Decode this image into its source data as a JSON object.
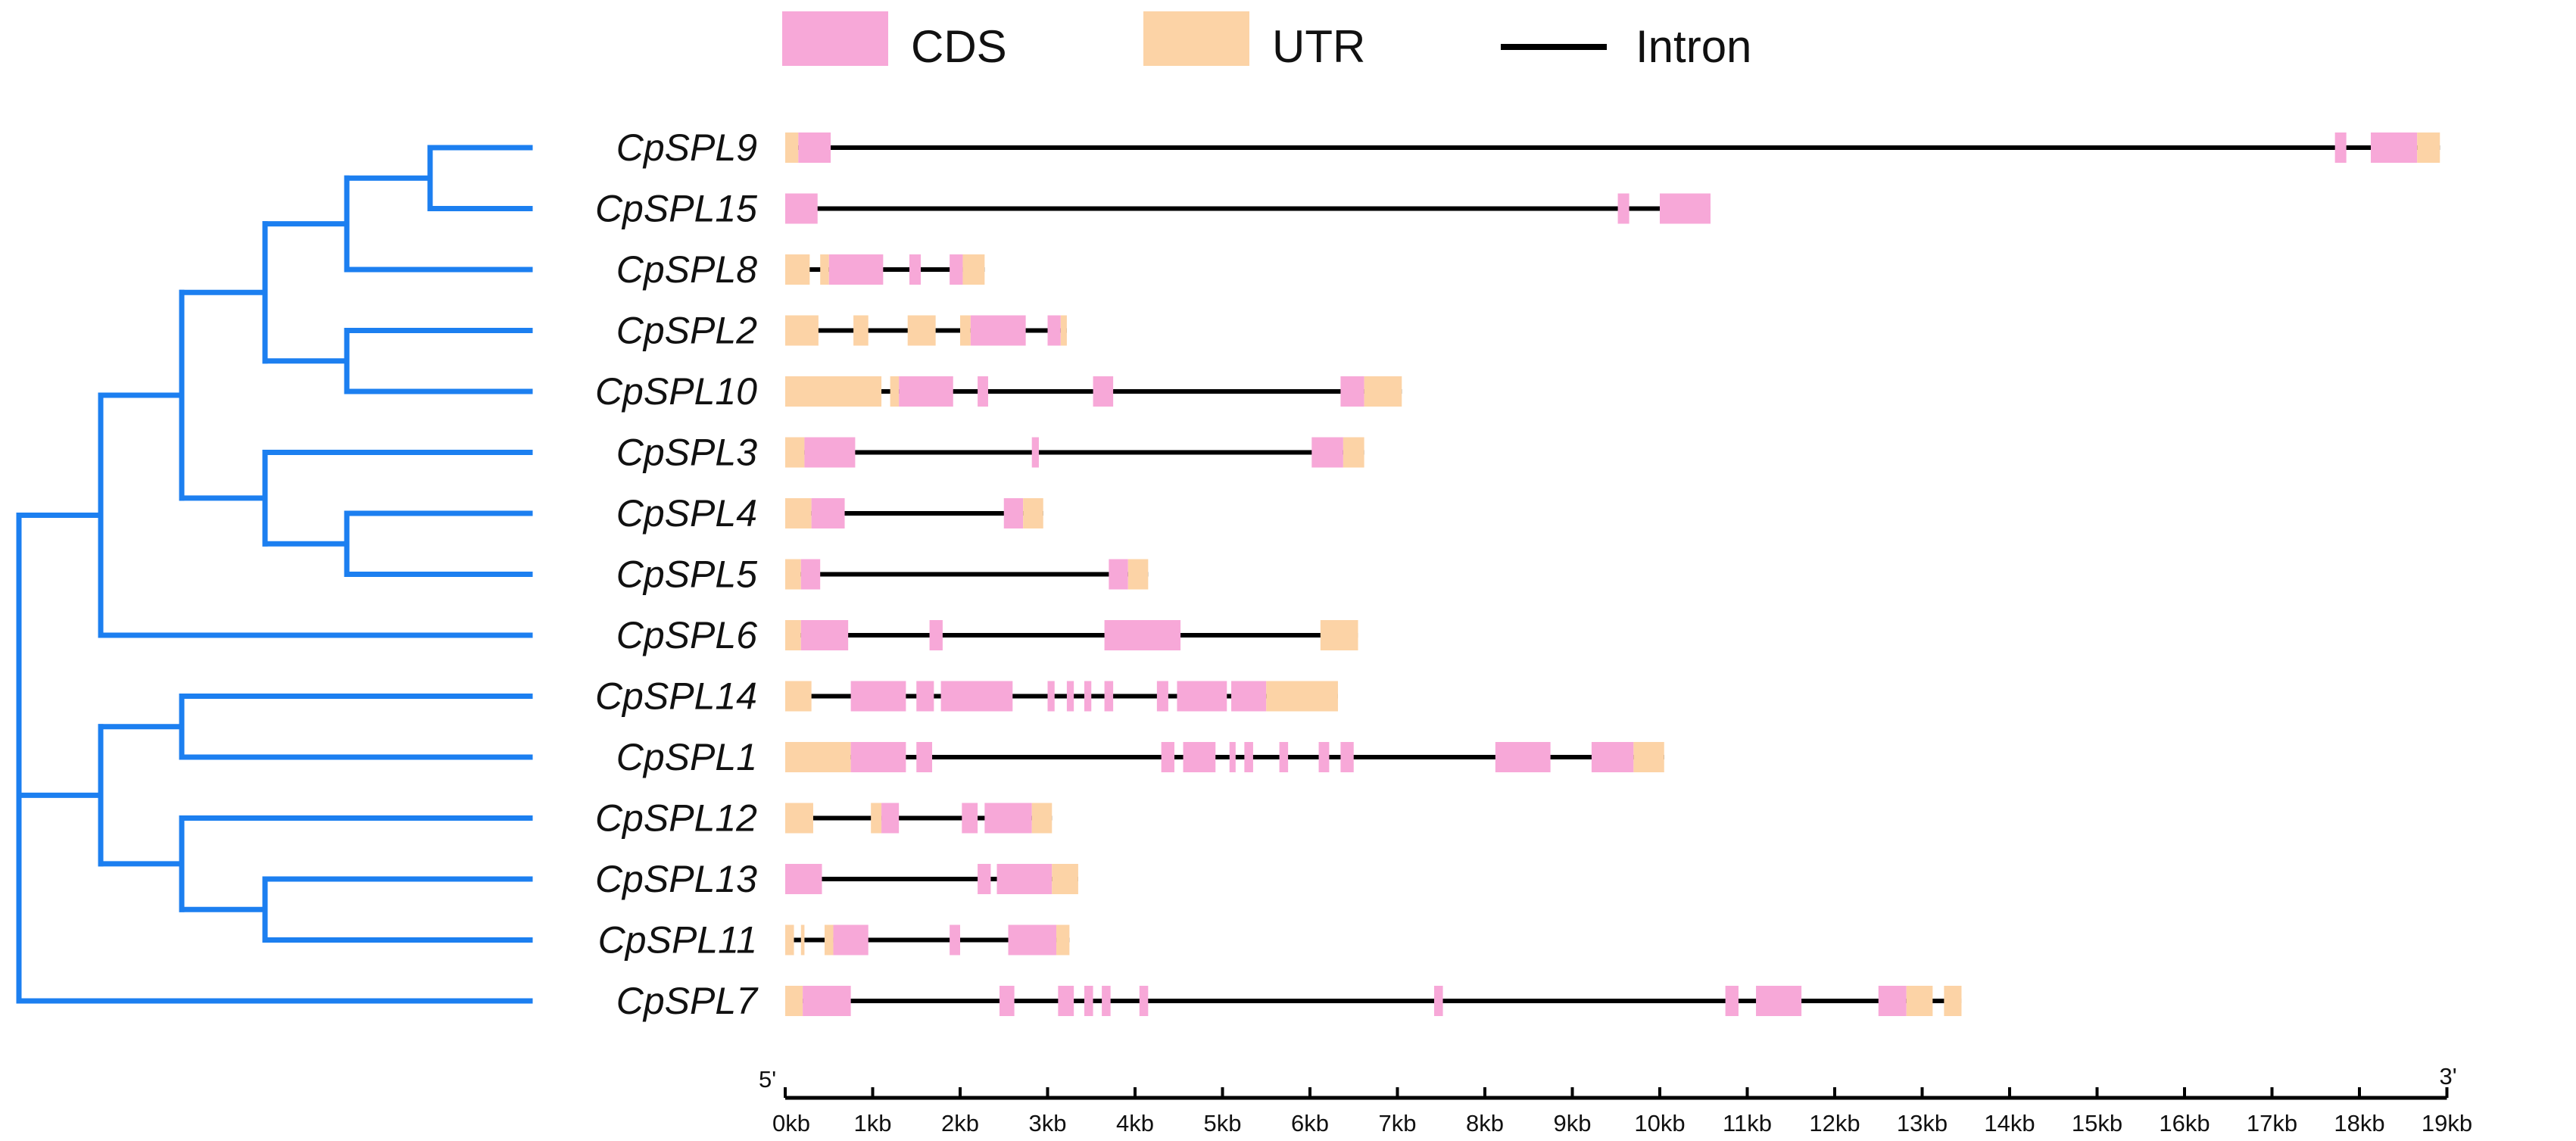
{
  "legend": {
    "items": [
      {
        "label": "CDS",
        "kind": "cds"
      },
      {
        "label": "UTR",
        "kind": "utr"
      },
      {
        "label": "Intron",
        "kind": "intron"
      }
    ]
  },
  "colors": {
    "cds": "#F7A8D8",
    "utr": "#FCD3A6",
    "intron": "#000000",
    "tree": "#1C7FF0"
  },
  "axis": {
    "start_label": "5'",
    "end_label": "3'",
    "ticks": [
      "0kb",
      "1kb",
      "2kb",
      "3kb",
      "4kb",
      "5kb",
      "6kb",
      "7kb",
      "8kb",
      "9kb",
      "10kb",
      "11kb",
      "12kb",
      "13kb",
      "14kb",
      "15kb",
      "16kb",
      "17kb",
      "18kb",
      "19kb"
    ],
    "min_kb": 0,
    "max_kb": 19
  },
  "tree": {
    "order": [
      "CpSPL9",
      "CpSPL15",
      "CpSPL8",
      "CpSPL2",
      "CpSPL10",
      "CpSPL3",
      "CpSPL4",
      "CpSPL5",
      "CpSPL6",
      "CpSPL14",
      "CpSPL1",
      "CpSPL12",
      "CpSPL13",
      "CpSPL11",
      "CpSPL7"
    ],
    "clades": [
      {
        "id": "a",
        "children": [
          "CpSPL9",
          "CpSPL15"
        ],
        "depth": 5
      },
      {
        "id": "b",
        "children": [
          "a",
          "CpSPL8"
        ],
        "depth": 4
      },
      {
        "id": "c",
        "children": [
          "CpSPL2",
          "CpSPL10"
        ],
        "depth": 4
      },
      {
        "id": "d",
        "children": [
          "b",
          "c"
        ],
        "depth": 3
      },
      {
        "id": "e",
        "children": [
          "CpSPL4",
          "CpSPL5"
        ],
        "depth": 4
      },
      {
        "id": "f",
        "children": [
          "CpSPL3",
          "e"
        ],
        "depth": 3
      },
      {
        "id": "g",
        "children": [
          "d",
          "f"
        ],
        "depth": 2
      },
      {
        "id": "h",
        "children": [
          "g",
          "CpSPL6"
        ],
        "depth": 1
      },
      {
        "id": "i",
        "children": [
          "CpSPL14",
          "CpSPL1"
        ],
        "depth": 2
      },
      {
        "id": "j",
        "children": [
          "CpSPL13",
          "CpSPL11"
        ],
        "depth": 3
      },
      {
        "id": "k",
        "children": [
          "CpSPL12",
          "j"
        ],
        "depth": 2
      },
      {
        "id": "l",
        "children": [
          "i",
          "k"
        ],
        "depth": 1
      },
      {
        "id": "root",
        "children": [
          "h",
          "l",
          "CpSPL7"
        ],
        "depth": 0
      }
    ]
  },
  "genes": [
    {
      "name": "CpSPL9",
      "length_kb": 18.92,
      "features": [
        {
          "t": "utr",
          "s": 0,
          "e": 0.15
        },
        {
          "t": "cds",
          "s": 0.15,
          "e": 0.52
        },
        {
          "t": "cds",
          "s": 17.72,
          "e": 17.85
        },
        {
          "t": "cds",
          "s": 18.13,
          "e": 18.66
        },
        {
          "t": "utr",
          "s": 18.66,
          "e": 18.92
        }
      ]
    },
    {
      "name": "CpSPL15",
      "length_kb": 10.58,
      "features": [
        {
          "t": "cds",
          "s": 0,
          "e": 0.37
        },
        {
          "t": "cds",
          "s": 9.52,
          "e": 9.65
        },
        {
          "t": "cds",
          "s": 10.0,
          "e": 10.58
        }
      ]
    },
    {
      "name": "CpSPL8",
      "length_kb": 2.28,
      "features": [
        {
          "t": "utr",
          "s": 0,
          "e": 0.28
        },
        {
          "t": "utr",
          "s": 0.4,
          "e": 0.5
        },
        {
          "t": "cds",
          "s": 0.5,
          "e": 1.12
        },
        {
          "t": "cds",
          "s": 1.42,
          "e": 1.55
        },
        {
          "t": "cds",
          "s": 1.88,
          "e": 2.03
        },
        {
          "t": "utr",
          "s": 2.03,
          "e": 2.28
        }
      ]
    },
    {
      "name": "CpSPL2",
      "length_kb": 3.22,
      "features": [
        {
          "t": "utr",
          "s": 0,
          "e": 0.38
        },
        {
          "t": "utr",
          "s": 0.78,
          "e": 0.95
        },
        {
          "t": "utr",
          "s": 1.4,
          "e": 1.72
        },
        {
          "t": "utr",
          "s": 2.0,
          "e": 2.12
        },
        {
          "t": "cds",
          "s": 2.12,
          "e": 2.75
        },
        {
          "t": "cds",
          "s": 3.0,
          "e": 3.15
        },
        {
          "t": "utr",
          "s": 3.15,
          "e": 3.22
        }
      ]
    },
    {
      "name": "CpSPL10",
      "length_kb": 7.05,
      "features": [
        {
          "t": "utr",
          "s": 0,
          "e": 1.1
        },
        {
          "t": "utr",
          "s": 1.2,
          "e": 1.3
        },
        {
          "t": "cds",
          "s": 1.3,
          "e": 1.92
        },
        {
          "t": "cds",
          "s": 2.2,
          "e": 2.32
        },
        {
          "t": "cds",
          "s": 3.52,
          "e": 3.75
        },
        {
          "t": "cds",
          "s": 6.35,
          "e": 6.62
        },
        {
          "t": "utr",
          "s": 6.62,
          "e": 7.05
        }
      ]
    },
    {
      "name": "CpSPL3",
      "length_kb": 6.62,
      "features": [
        {
          "t": "utr",
          "s": 0,
          "e": 0.22
        },
        {
          "t": "cds",
          "s": 0.22,
          "e": 0.8
        },
        {
          "t": "cds",
          "s": 2.82,
          "e": 2.9
        },
        {
          "t": "cds",
          "s": 6.02,
          "e": 6.38
        },
        {
          "t": "utr",
          "s": 6.38,
          "e": 6.62
        }
      ]
    },
    {
      "name": "CpSPL4",
      "length_kb": 2.95,
      "features": [
        {
          "t": "utr",
          "s": 0,
          "e": 0.3
        },
        {
          "t": "cds",
          "s": 0.3,
          "e": 0.68
        },
        {
          "t": "cds",
          "s": 2.5,
          "e": 2.72
        },
        {
          "t": "utr",
          "s": 2.72,
          "e": 2.95
        }
      ]
    },
    {
      "name": "CpSPL5",
      "length_kb": 4.15,
      "features": [
        {
          "t": "utr",
          "s": 0,
          "e": 0.18
        },
        {
          "t": "cds",
          "s": 0.18,
          "e": 0.4
        },
        {
          "t": "cds",
          "s": 3.7,
          "e": 3.92
        },
        {
          "t": "utr",
          "s": 3.92,
          "e": 4.15
        }
      ]
    },
    {
      "name": "CpSPL6",
      "length_kb": 6.55,
      "features": [
        {
          "t": "utr",
          "s": 0,
          "e": 0.18
        },
        {
          "t": "cds",
          "s": 0.18,
          "e": 0.72
        },
        {
          "t": "cds",
          "s": 1.65,
          "e": 1.8
        },
        {
          "t": "cds",
          "s": 3.65,
          "e": 4.52
        },
        {
          "t": "utr",
          "s": 6.12,
          "e": 6.55
        }
      ]
    },
    {
      "name": "CpSPL14",
      "length_kb": 6.32,
      "features": [
        {
          "t": "utr",
          "s": 0,
          "e": 0.3
        },
        {
          "t": "cds",
          "s": 0.75,
          "e": 1.38
        },
        {
          "t": "cds",
          "s": 1.5,
          "e": 1.7
        },
        {
          "t": "cds",
          "s": 1.78,
          "e": 2.6
        },
        {
          "t": "cds",
          "s": 3.0,
          "e": 3.08
        },
        {
          "t": "cds",
          "s": 3.22,
          "e": 3.3
        },
        {
          "t": "cds",
          "s": 3.42,
          "e": 3.5
        },
        {
          "t": "cds",
          "s": 3.65,
          "e": 3.75
        },
        {
          "t": "cds",
          "s": 4.25,
          "e": 4.38
        },
        {
          "t": "cds",
          "s": 4.48,
          "e": 5.05
        },
        {
          "t": "cds",
          "s": 5.1,
          "e": 5.5
        },
        {
          "t": "utr",
          "s": 5.5,
          "e": 6.32
        }
      ]
    },
    {
      "name": "CpSPL1",
      "length_kb": 10.05,
      "features": [
        {
          "t": "utr",
          "s": 0,
          "e": 0.75
        },
        {
          "t": "cds",
          "s": 0.75,
          "e": 1.38
        },
        {
          "t": "cds",
          "s": 1.5,
          "e": 1.68
        },
        {
          "t": "cds",
          "s": 4.3,
          "e": 4.45
        },
        {
          "t": "cds",
          "s": 4.55,
          "e": 4.92
        },
        {
          "t": "cds",
          "s": 5.08,
          "e": 5.15
        },
        {
          "t": "cds",
          "s": 5.25,
          "e": 5.35
        },
        {
          "t": "cds",
          "s": 5.65,
          "e": 5.75
        },
        {
          "t": "cds",
          "s": 6.1,
          "e": 6.22
        },
        {
          "t": "cds",
          "s": 6.35,
          "e": 6.5
        },
        {
          "t": "cds",
          "s": 8.12,
          "e": 8.75
        },
        {
          "t": "cds",
          "s": 9.22,
          "e": 9.7
        },
        {
          "t": "utr",
          "s": 9.7,
          "e": 10.05
        }
      ]
    },
    {
      "name": "CpSPL12",
      "length_kb": 3.05,
      "features": [
        {
          "t": "utr",
          "s": 0,
          "e": 0.32
        },
        {
          "t": "utr",
          "s": 0.98,
          "e": 1.1
        },
        {
          "t": "cds",
          "s": 1.1,
          "e": 1.3
        },
        {
          "t": "cds",
          "s": 2.02,
          "e": 2.2
        },
        {
          "t": "cds",
          "s": 2.28,
          "e": 2.82
        },
        {
          "t": "utr",
          "s": 2.82,
          "e": 3.05
        }
      ]
    },
    {
      "name": "CpSPL13",
      "length_kb": 3.35,
      "features": [
        {
          "t": "cds",
          "s": 0,
          "e": 0.42
        },
        {
          "t": "cds",
          "s": 2.2,
          "e": 2.35
        },
        {
          "t": "cds",
          "s": 2.42,
          "e": 3.05
        },
        {
          "t": "utr",
          "s": 3.05,
          "e": 3.35
        }
      ]
    },
    {
      "name": "CpSPL11",
      "length_kb": 3.25,
      "features": [
        {
          "t": "utr",
          "s": 0,
          "e": 0.1
        },
        {
          "t": "utr",
          "s": 0.18,
          "e": 0.22
        },
        {
          "t": "utr",
          "s": 0.45,
          "e": 0.55
        },
        {
          "t": "cds",
          "s": 0.55,
          "e": 0.95
        },
        {
          "t": "cds",
          "s": 1.88,
          "e": 2.0
        },
        {
          "t": "cds",
          "s": 2.55,
          "e": 3.1
        },
        {
          "t": "utr",
          "s": 3.1,
          "e": 3.25
        }
      ]
    },
    {
      "name": "CpSPL7",
      "length_kb": 13.45,
      "features": [
        {
          "t": "utr",
          "s": 0,
          "e": 0.2
        },
        {
          "t": "cds",
          "s": 0.2,
          "e": 0.75
        },
        {
          "t": "cds",
          "s": 2.45,
          "e": 2.62
        },
        {
          "t": "cds",
          "s": 3.12,
          "e": 3.3
        },
        {
          "t": "cds",
          "s": 3.42,
          "e": 3.52
        },
        {
          "t": "cds",
          "s": 3.62,
          "e": 3.72
        },
        {
          "t": "cds",
          "s": 4.05,
          "e": 4.15
        },
        {
          "t": "cds",
          "s": 7.42,
          "e": 7.52
        },
        {
          "t": "cds",
          "s": 10.75,
          "e": 10.9
        },
        {
          "t": "cds",
          "s": 11.1,
          "e": 11.62
        },
        {
          "t": "cds",
          "s": 12.5,
          "e": 12.82
        },
        {
          "t": "utr",
          "s": 12.82,
          "e": 13.12
        },
        {
          "t": "utr",
          "s": 13.25,
          "e": 13.45
        }
      ]
    }
  ]
}
